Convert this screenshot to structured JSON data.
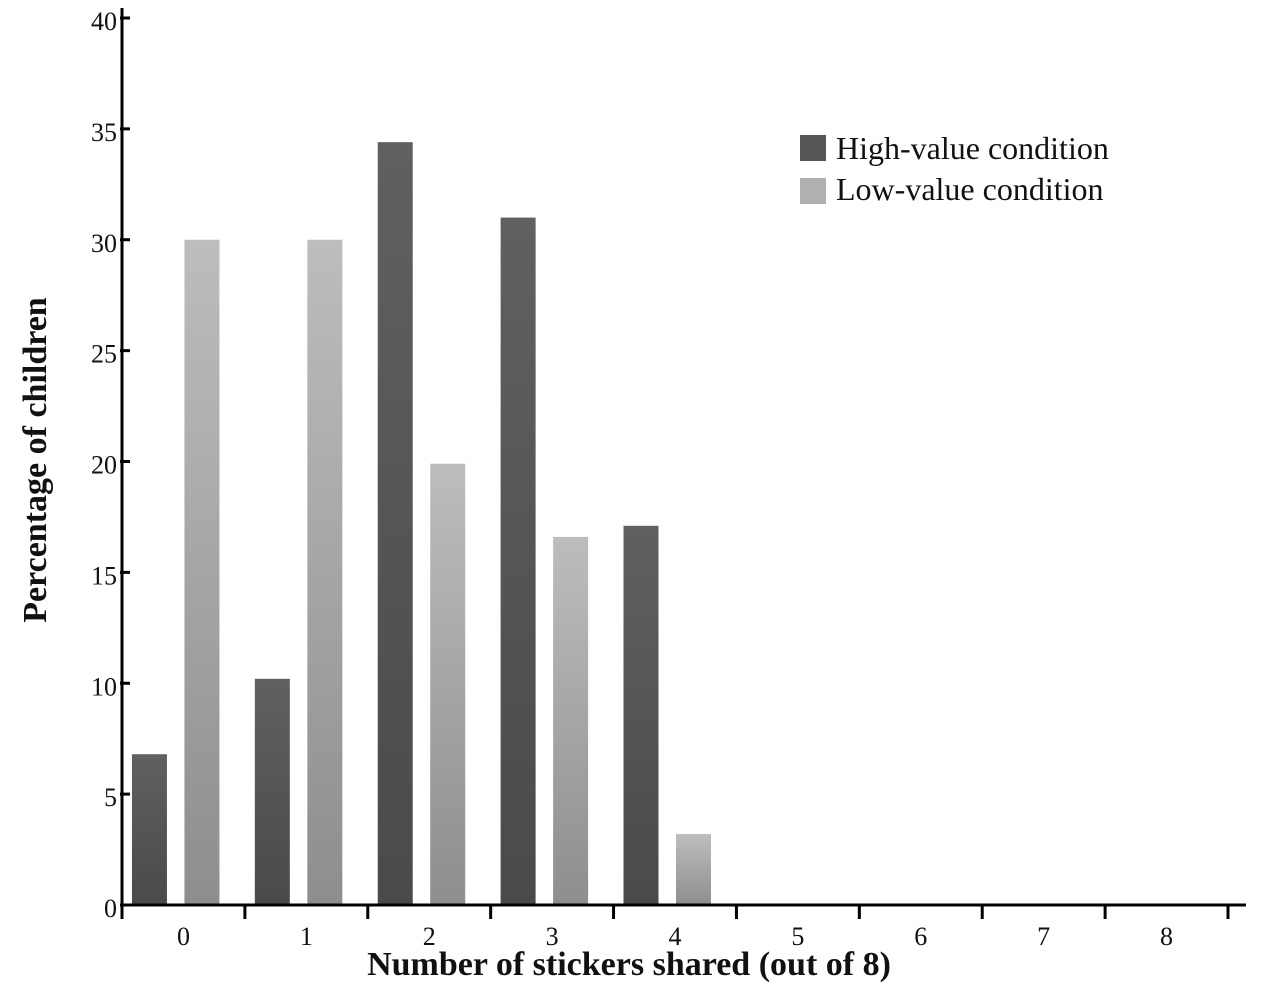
{
  "chart_data": {
    "type": "bar",
    "title": "",
    "xlabel": "Number of stickers shared (out of 8)",
    "ylabel": "Percentage of children",
    "categories": [
      "0",
      "1",
      "2",
      "3",
      "4",
      "5",
      "6",
      "7",
      "8"
    ],
    "series": [
      {
        "name": "High-value condition",
        "color": "#555555",
        "values": [
          6.8,
          10.2,
          34.4,
          31.0,
          17.1,
          0,
          0,
          0,
          0
        ]
      },
      {
        "name": "Low-value condition",
        "color": "#b0b0b0",
        "values": [
          30.0,
          30.0,
          19.9,
          16.6,
          3.2,
          0,
          0,
          0,
          0
        ]
      }
    ],
    "ylim": [
      0,
      40
    ],
    "yticks": [
      0,
      5,
      10,
      15,
      20,
      25,
      30,
      35,
      40
    ],
    "grid": false,
    "legend_position": "top-right"
  }
}
